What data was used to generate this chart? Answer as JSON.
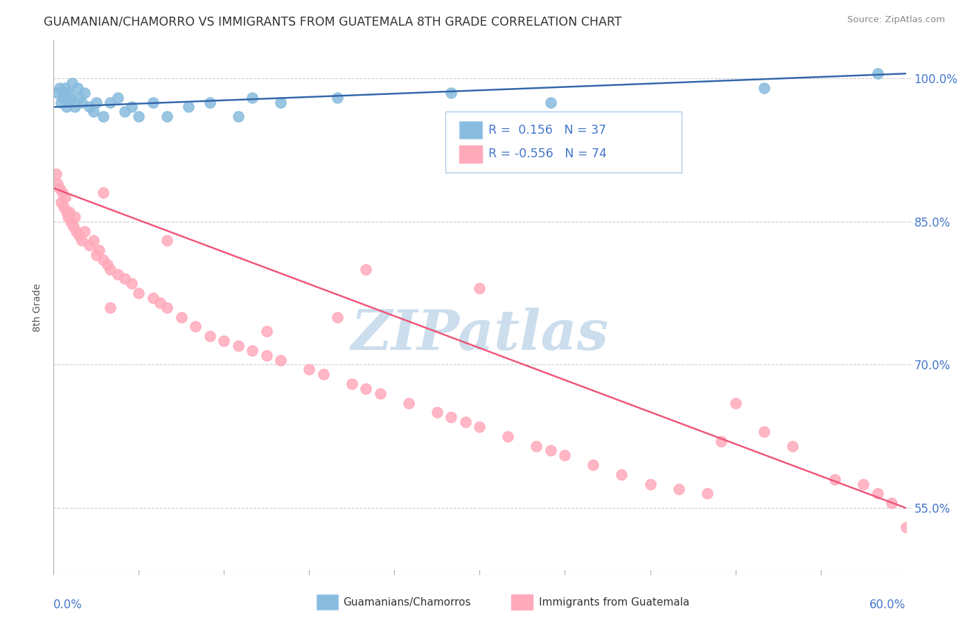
{
  "title": "GUAMANIAN/CHAMORRO VS IMMIGRANTS FROM GUATEMALA 8TH GRADE CORRELATION CHART",
  "source": "Source: ZipAtlas.com",
  "ylabel": "8th Grade",
  "yticks": [
    55.0,
    70.0,
    85.0,
    100.0
  ],
  "ytick_labels": [
    "55.0%",
    "70.0%",
    "85.0%",
    "100.0%"
  ],
  "xmin": 0.0,
  "xmax": 60.0,
  "ymin": 48.0,
  "ymax": 104.0,
  "blue_R": 0.156,
  "blue_N": 37,
  "pink_R": -0.556,
  "pink_N": 74,
  "blue_color": "#88bbdd",
  "pink_color": "#ffaabb",
  "blue_line_color": "#3366aa",
  "pink_line_color": "#ee5577",
  "legend_label_blue": "Guamanians/Chamorros",
  "legend_label_pink": "Immigrants from Guatemala",
  "watermark": "ZIPatlas",
  "watermark_color": "#ccdded",
  "blue_line_y0": 97.0,
  "blue_line_y1": 100.5,
  "pink_line_y0": 88.5,
  "pink_line_y1": 55.0,
  "blue_x": [
    0.3,
    0.4,
    0.5,
    0.6,
    0.7,
    0.8,
    0.9,
    1.0,
    1.1,
    1.2,
    1.3,
    1.5,
    1.7,
    1.8,
    2.0,
    2.2,
    2.5,
    2.8,
    3.0,
    3.5,
    4.0,
    4.5,
    5.0,
    5.5,
    6.0,
    7.0,
    8.0,
    9.5,
    11.0,
    13.0,
    14.0,
    16.0,
    20.0,
    28.0,
    35.0,
    50.0,
    58.0
  ],
  "blue_y": [
    98.5,
    99.0,
    97.5,
    98.0,
    98.5,
    99.0,
    97.0,
    98.5,
    97.5,
    98.0,
    99.5,
    97.0,
    99.0,
    98.0,
    97.5,
    98.5,
    97.0,
    96.5,
    97.5,
    96.0,
    97.5,
    98.0,
    96.5,
    97.0,
    96.0,
    97.5,
    96.0,
    97.0,
    97.5,
    96.0,
    98.0,
    97.5,
    98.0,
    98.5,
    97.5,
    99.0,
    100.5
  ],
  "pink_x": [
    0.2,
    0.3,
    0.4,
    0.5,
    0.6,
    0.7,
    0.8,
    0.9,
    1.0,
    1.1,
    1.2,
    1.4,
    1.5,
    1.6,
    1.8,
    2.0,
    2.2,
    2.5,
    2.8,
    3.0,
    3.2,
    3.5,
    3.8,
    4.0,
    4.5,
    5.0,
    5.5,
    6.0,
    7.0,
    7.5,
    8.0,
    9.0,
    10.0,
    11.0,
    12.0,
    13.0,
    14.0,
    15.0,
    16.0,
    18.0,
    19.0,
    21.0,
    22.0,
    23.0,
    25.0,
    27.0,
    28.0,
    29.0,
    30.0,
    32.0,
    34.0,
    35.0,
    36.0,
    38.0,
    40.0,
    42.0,
    44.0,
    46.0,
    47.0,
    48.0,
    50.0,
    52.0,
    55.0,
    57.0,
    58.0,
    59.0,
    60.0,
    30.0,
    22.0,
    8.0,
    20.0,
    15.0,
    3.5,
    4.0
  ],
  "pink_y": [
    90.0,
    89.0,
    88.5,
    87.0,
    88.0,
    86.5,
    87.5,
    86.0,
    85.5,
    86.0,
    85.0,
    84.5,
    85.5,
    84.0,
    83.5,
    83.0,
    84.0,
    82.5,
    83.0,
    81.5,
    82.0,
    81.0,
    80.5,
    80.0,
    79.5,
    79.0,
    78.5,
    77.5,
    77.0,
    76.5,
    76.0,
    75.0,
    74.0,
    73.0,
    72.5,
    72.0,
    71.5,
    71.0,
    70.5,
    69.5,
    69.0,
    68.0,
    67.5,
    67.0,
    66.0,
    65.0,
    64.5,
    64.0,
    63.5,
    62.5,
    61.5,
    61.0,
    60.5,
    59.5,
    58.5,
    57.5,
    57.0,
    56.5,
    62.0,
    66.0,
    63.0,
    61.5,
    58.0,
    57.5,
    56.5,
    55.5,
    53.0,
    78.0,
    80.0,
    83.0,
    75.0,
    73.5,
    88.0,
    76.0
  ]
}
